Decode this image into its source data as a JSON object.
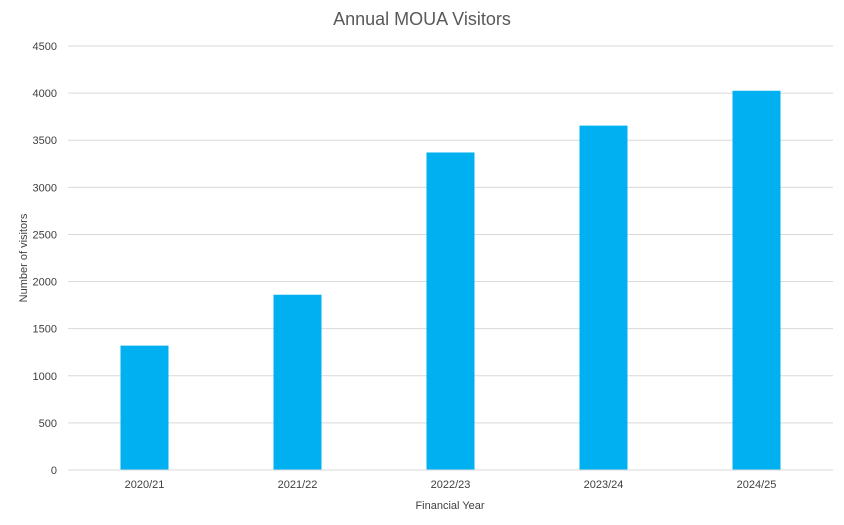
{
  "chart_data": {
    "type": "bar",
    "title": "Annual MOUA Visitors",
    "xlabel": "Financial Year",
    "ylabel": "Number of visitors",
    "categories": [
      "2020/21",
      "2021/22",
      "2022/23",
      "2023/24",
      "2024/25"
    ],
    "values": [
      1320,
      1860,
      3370,
      3655,
      4025
    ],
    "ylim": [
      0,
      4500
    ],
    "yticks": [
      0,
      500,
      1000,
      1500,
      2000,
      2500,
      3000,
      3500,
      4000,
      4500
    ],
    "grid": true,
    "legend": "none",
    "bar_color": "#00B0F0",
    "grid_color": "#D9D9D9"
  }
}
